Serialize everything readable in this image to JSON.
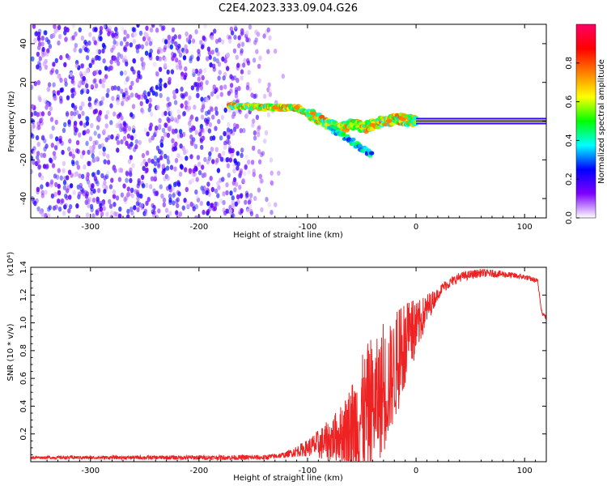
{
  "title": "C2E4.2023.333.09.04.G26",
  "chart_data": [
    {
      "type": "heatmap",
      "title": "C2E4.2023.333.09.04.G26",
      "xlabel": "Height of straight line (km)",
      "ylabel": "Frequency (Hz)",
      "xlim": [
        -355,
        120
      ],
      "ylim": [
        -50,
        50
      ],
      "x_ticks": [
        -300,
        -200,
        -100,
        0,
        100
      ],
      "x_tick_labels": [
        "-300",
        "-200",
        "-100",
        "0",
        "100"
      ],
      "y_ticks": [
        -40,
        -20,
        0,
        20,
        40
      ],
      "y_tick_labels": [
        "-40",
        "-20",
        "0",
        "20",
        "40"
      ],
      "colorbar": {
        "label": "Normalized spectral amplitude",
        "range": [
          0,
          1
        ],
        "ticks": [
          0.0,
          0.2,
          0.4,
          0.6,
          0.8
        ],
        "tick_labels": [
          "0.0",
          "0.2",
          "0.4",
          "0.6",
          "0.8"
        ],
        "colormap": [
          "#ffffff",
          "#7f00ff",
          "#0000ff",
          "#00ffff",
          "#00ff00",
          "#ffff00",
          "#ff7f00",
          "#ff0000",
          "#ff0066"
        ]
      },
      "features": {
        "noise_region_x": [
          -355,
          -120
        ],
        "noise_amplitude": 0.25,
        "signal_track": [
          {
            "x": -170,
            "y": 8
          },
          {
            "x": -140,
            "y": 7
          },
          {
            "x": -110,
            "y": 7
          },
          {
            "x": -95,
            "y": 3
          },
          {
            "x": -80,
            "y": -2
          },
          {
            "x": -70,
            "y": -4
          },
          {
            "x": -60,
            "y": -2
          },
          {
            "x": -45,
            "y": -3
          },
          {
            "x": -30,
            "y": 0
          },
          {
            "x": -15,
            "y": 1
          },
          {
            "x": 0,
            "y": 0
          },
          {
            "x": 120,
            "y": 0
          }
        ],
        "secondary_branch": [
          {
            "x": -80,
            "y": -3
          },
          {
            "x": -60,
            "y": -10
          },
          {
            "x": -40,
            "y": -18
          }
        ],
        "steady_line": {
          "x_start": 0,
          "x_end": 120,
          "y": 0,
          "amplitude": 1.0
        }
      }
    },
    {
      "type": "line",
      "xlabel": "Height of straight line (km)",
      "ylabel": "SNR (10 * v/v)",
      "y_scale_label": "(x10⁴)",
      "xlim": [
        -355,
        120
      ],
      "ylim": [
        0,
        1.4
      ],
      "x_ticks": [
        -300,
        -200,
        -100,
        0,
        100
      ],
      "x_tick_labels": [
        "-300",
        "-200",
        "-100",
        "0",
        "100"
      ],
      "y_ticks": [
        0.2,
        0.4,
        0.6,
        0.8,
        1.0,
        1.2,
        1.4
      ],
      "y_tick_labels": [
        "0.2",
        "0.4",
        "0.6",
        "0.8",
        "1.0",
        "1.2",
        "1.4"
      ],
      "color": "#ee2222",
      "envelope": [
        {
          "x": -355,
          "y": 0.03
        },
        {
          "x": -140,
          "y": 0.03
        },
        {
          "x": -120,
          "y": 0.05
        },
        {
          "x": -100,
          "y": 0.1
        },
        {
          "x": -80,
          "y": 0.15
        },
        {
          "x": -60,
          "y": 0.25
        },
        {
          "x": -45,
          "y": 0.35
        },
        {
          "x": -30,
          "y": 0.5
        },
        {
          "x": -20,
          "y": 0.65
        },
        {
          "x": -10,
          "y": 0.8
        },
        {
          "x": 0,
          "y": 0.95
        },
        {
          "x": 10,
          "y": 1.1
        },
        {
          "x": 25,
          "y": 1.26
        },
        {
          "x": 40,
          "y": 1.33
        },
        {
          "x": 60,
          "y": 1.36
        },
        {
          "x": 80,
          "y": 1.35
        },
        {
          "x": 100,
          "y": 1.33
        },
        {
          "x": 112,
          "y": 1.3
        },
        {
          "x": 116,
          "y": 1.07
        },
        {
          "x": 120,
          "y": 1.04
        }
      ],
      "noise_amplitude": [
        {
          "x": -355,
          "y": 0.01
        },
        {
          "x": -120,
          "y": 0.02
        },
        {
          "x": -100,
          "y": 0.06
        },
        {
          "x": -70,
          "y": 0.2
        },
        {
          "x": -50,
          "y": 0.45
        },
        {
          "x": -30,
          "y": 0.45
        },
        {
          "x": -10,
          "y": 0.3
        },
        {
          "x": 5,
          "y": 0.15
        },
        {
          "x": 20,
          "y": 0.04
        },
        {
          "x": 120,
          "y": 0.015
        }
      ]
    }
  ]
}
